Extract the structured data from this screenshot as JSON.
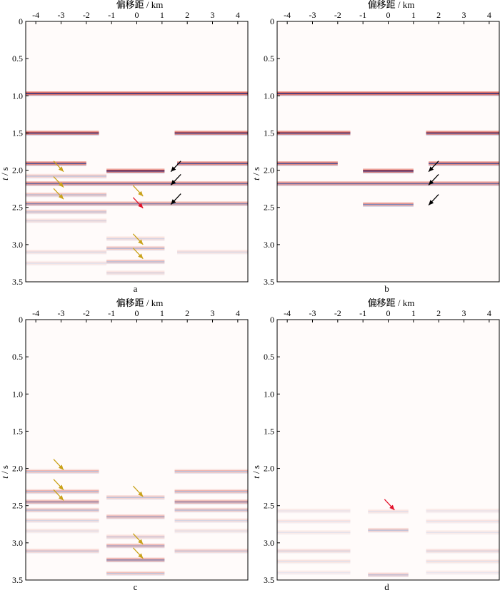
{
  "figure": {
    "x_axis_label": "偏移距 / km",
    "y_axis_label_italic": "t",
    "y_axis_label_rest": " / s",
    "x_ticks": [
      -4,
      -3,
      -2,
      -1,
      0,
      1,
      2,
      3,
      4
    ],
    "y_ticks": [
      "0",
      "0.5",
      "1.0",
      "1.5",
      "2.0",
      "2.5",
      "3.0",
      "3.5"
    ],
    "colors": {
      "background": "#fffbfa",
      "red": "#d43d2e",
      "blue": "#2f3a8c",
      "olive_arrow": "#c9a21a",
      "black_arrow": "#000000",
      "red_arrow": "#e3122b"
    }
  },
  "chart_data": [
    {
      "type": "heatmap",
      "panel_label": "a",
      "xlabel": "偏移距 / km",
      "ylabel": "t / s",
      "xlim": [
        -4.4,
        4.4
      ],
      "ylim": [
        0,
        3.5
      ],
      "events": [
        {
          "t": 0.97,
          "x_from": -4.4,
          "x_to": 4.4,
          "amp": 1.0
        },
        {
          "t": 1.5,
          "x_from": -4.4,
          "x_to": -1.5,
          "amp": 1.0
        },
        {
          "t": 1.5,
          "x_from": 1.5,
          "x_to": 4.4,
          "amp": 1.0
        },
        {
          "t": 1.91,
          "x_from": -4.4,
          "x_to": -2.0,
          "amp": 0.85
        },
        {
          "t": 1.91,
          "x_from": 1.6,
          "x_to": 4.4,
          "amp": 0.85
        },
        {
          "t": 2.01,
          "x_from": -1.2,
          "x_to": 1.1,
          "amp": 1.0
        },
        {
          "t": 2.08,
          "x_from": -4.4,
          "x_to": -1.2,
          "amp": 0.3
        },
        {
          "t": 2.18,
          "x_from": -4.4,
          "x_to": 4.4,
          "amp": 0.75
        },
        {
          "t": 2.33,
          "x_from": -4.4,
          "x_to": -1.2,
          "amp": 0.35
        },
        {
          "t": 2.45,
          "x_from": -4.4,
          "x_to": 4.4,
          "amp": 0.6
        },
        {
          "t": 2.56,
          "x_from": -4.4,
          "x_to": -1.2,
          "amp": 0.3
        },
        {
          "t": 2.68,
          "x_from": -4.4,
          "x_to": -1.2,
          "amp": 0.2
        },
        {
          "t": 2.92,
          "x_from": -1.2,
          "x_to": 1.1,
          "amp": 0.2
        },
        {
          "t": 3.05,
          "x_from": -1.2,
          "x_to": 1.1,
          "amp": 0.35
        },
        {
          "t": 3.1,
          "x_from": -4.4,
          "x_to": -1.2,
          "amp": 0.18
        },
        {
          "t": 3.1,
          "x_from": 1.6,
          "x_to": 4.4,
          "amp": 0.18
        },
        {
          "t": 3.23,
          "x_from": -1.2,
          "x_to": 1.1,
          "amp": 0.35
        },
        {
          "t": 3.25,
          "x_from": -4.4,
          "x_to": -1.2,
          "amp": 0.15
        },
        {
          "t": 3.38,
          "x_from": -1.2,
          "x_to": 1.1,
          "amp": 0.2
        }
      ],
      "arrows": [
        {
          "color": "olive",
          "x": -2.9,
          "t": 2.02,
          "dir": "down-right"
        },
        {
          "color": "olive",
          "x": -2.9,
          "t": 2.23,
          "dir": "down-right"
        },
        {
          "color": "olive",
          "x": -2.9,
          "t": 2.39,
          "dir": "down-right"
        },
        {
          "color": "olive",
          "x": 0.25,
          "t": 2.35,
          "dir": "down-right"
        },
        {
          "color": "olive",
          "x": 0.25,
          "t": 3.0,
          "dir": "down-right"
        },
        {
          "color": "olive",
          "x": 0.25,
          "t": 3.19,
          "dir": "down-right"
        },
        {
          "color": "red",
          "x": 0.25,
          "t": 2.51,
          "dir": "down-right"
        },
        {
          "color": "black",
          "x": 1.35,
          "t": 2.02,
          "dir": "down-left"
        },
        {
          "color": "black",
          "x": 1.35,
          "t": 2.2,
          "dir": "down-left"
        },
        {
          "color": "black",
          "x": 1.35,
          "t": 2.46,
          "dir": "down-left"
        }
      ]
    },
    {
      "type": "heatmap",
      "panel_label": "b",
      "xlabel": "偏移距 / km",
      "ylabel": "t / s",
      "xlim": [
        -4.4,
        4.4
      ],
      "ylim": [
        0,
        3.5
      ],
      "events": [
        {
          "t": 0.97,
          "x_from": -4.4,
          "x_to": 4.4,
          "amp": 1.0
        },
        {
          "t": 1.5,
          "x_from": -4.4,
          "x_to": -1.5,
          "amp": 1.0
        },
        {
          "t": 1.5,
          "x_from": 1.5,
          "x_to": 4.4,
          "amp": 1.0
        },
        {
          "t": 1.91,
          "x_from": -4.4,
          "x_to": -2.0,
          "amp": 0.85
        },
        {
          "t": 1.91,
          "x_from": 1.6,
          "x_to": 4.4,
          "amp": 0.85
        },
        {
          "t": 2.01,
          "x_from": -1.0,
          "x_to": 1.0,
          "amp": 1.0
        },
        {
          "t": 2.18,
          "x_from": -4.4,
          "x_to": 4.4,
          "amp": 0.75
        },
        {
          "t": 2.46,
          "x_from": -1.0,
          "x_to": 1.0,
          "amp": 0.6
        }
      ],
      "arrows": [
        {
          "color": "black",
          "x": 1.6,
          "t": 2.02,
          "dir": "down-left"
        },
        {
          "color": "black",
          "x": 1.6,
          "t": 2.2,
          "dir": "down-left"
        },
        {
          "color": "black",
          "x": 1.6,
          "t": 2.47,
          "dir": "down-left"
        }
      ]
    },
    {
      "type": "heatmap",
      "panel_label": "c",
      "xlabel": "偏移距 / km",
      "ylabel": "t / s",
      "xlim": [
        -4.4,
        4.4
      ],
      "ylim": [
        0,
        3.5
      ],
      "events": [
        {
          "t": 2.04,
          "x_from": -4.4,
          "x_to": -1.5,
          "amp": 0.35
        },
        {
          "t": 2.04,
          "x_from": 1.5,
          "x_to": 4.4,
          "amp": 0.35
        },
        {
          "t": 2.31,
          "x_from": -4.4,
          "x_to": -1.5,
          "amp": 0.4
        },
        {
          "t": 2.31,
          "x_from": 1.5,
          "x_to": 4.4,
          "amp": 0.4
        },
        {
          "t": 2.39,
          "x_from": -1.2,
          "x_to": 1.1,
          "amp": 0.3
        },
        {
          "t": 2.45,
          "x_from": -4.4,
          "x_to": -1.5,
          "amp": 0.55
        },
        {
          "t": 2.45,
          "x_from": 1.5,
          "x_to": 4.4,
          "amp": 0.55
        },
        {
          "t": 2.56,
          "x_from": -4.4,
          "x_to": -1.5,
          "amp": 0.35
        },
        {
          "t": 2.56,
          "x_from": 1.5,
          "x_to": 4.4,
          "amp": 0.35
        },
        {
          "t": 2.65,
          "x_from": -1.2,
          "x_to": 1.1,
          "amp": 0.45
        },
        {
          "t": 2.7,
          "x_from": -4.4,
          "x_to": -1.5,
          "amp": 0.2
        },
        {
          "t": 2.7,
          "x_from": 1.5,
          "x_to": 4.4,
          "amp": 0.2
        },
        {
          "t": 2.84,
          "x_from": -4.4,
          "x_to": -1.5,
          "amp": 0.15
        },
        {
          "t": 2.84,
          "x_from": 1.5,
          "x_to": 4.4,
          "amp": 0.15
        },
        {
          "t": 2.92,
          "x_from": -1.2,
          "x_to": 1.1,
          "amp": 0.25
        },
        {
          "t": 3.04,
          "x_from": -1.2,
          "x_to": 1.1,
          "amp": 0.45
        },
        {
          "t": 3.11,
          "x_from": -4.4,
          "x_to": -1.5,
          "amp": 0.3
        },
        {
          "t": 3.11,
          "x_from": 1.5,
          "x_to": 4.4,
          "amp": 0.3
        },
        {
          "t": 3.23,
          "x_from": -1.2,
          "x_to": 1.1,
          "amp": 0.6
        },
        {
          "t": 3.41,
          "x_from": -1.2,
          "x_to": 1.1,
          "amp": 0.3
        }
      ],
      "arrows": [
        {
          "color": "olive",
          "x": -2.9,
          "t": 2.02,
          "dir": "down-right"
        },
        {
          "color": "olive",
          "x": -2.9,
          "t": 2.29,
          "dir": "down-right"
        },
        {
          "color": "olive",
          "x": -2.9,
          "t": 2.43,
          "dir": "down-right"
        },
        {
          "color": "olive",
          "x": 0.25,
          "t": 2.38,
          "dir": "down-right"
        },
        {
          "color": "olive",
          "x": 0.25,
          "t": 3.02,
          "dir": "down-right"
        },
        {
          "color": "olive",
          "x": 0.25,
          "t": 3.21,
          "dir": "down-right"
        }
      ]
    },
    {
      "type": "heatmap",
      "panel_label": "d",
      "xlabel": "偏移距 / km",
      "ylabel": "t / s",
      "xlim": [
        -4.4,
        4.4
      ],
      "ylim": [
        0,
        3.5
      ],
      "events": [
        {
          "t": 2.57,
          "x_from": -4.4,
          "x_to": -1.5,
          "amp": 0.12
        },
        {
          "t": 2.57,
          "x_from": 1.5,
          "x_to": 4.4,
          "amp": 0.12
        },
        {
          "t": 2.58,
          "x_from": -0.8,
          "x_to": 0.8,
          "amp": 0.15
        },
        {
          "t": 2.71,
          "x_from": -4.4,
          "x_to": -1.5,
          "amp": 0.12
        },
        {
          "t": 2.71,
          "x_from": 1.5,
          "x_to": 4.4,
          "amp": 0.12
        },
        {
          "t": 2.83,
          "x_from": -0.8,
          "x_to": 0.8,
          "amp": 0.3
        },
        {
          "t": 2.86,
          "x_from": -4.4,
          "x_to": -1.5,
          "amp": 0.12
        },
        {
          "t": 2.86,
          "x_from": 1.5,
          "x_to": 4.4,
          "amp": 0.12
        },
        {
          "t": 3.11,
          "x_from": -4.4,
          "x_to": -1.5,
          "amp": 0.2
        },
        {
          "t": 3.11,
          "x_from": 1.5,
          "x_to": 4.4,
          "amp": 0.2
        },
        {
          "t": 3.25,
          "x_from": -4.4,
          "x_to": -1.5,
          "amp": 0.15
        },
        {
          "t": 3.25,
          "x_from": 1.5,
          "x_to": 4.4,
          "amp": 0.15
        },
        {
          "t": 3.4,
          "x_from": -4.4,
          "x_to": -1.5,
          "amp": 0.1
        },
        {
          "t": 3.4,
          "x_from": 1.5,
          "x_to": 4.4,
          "amp": 0.1
        },
        {
          "t": 3.43,
          "x_from": -0.8,
          "x_to": 0.8,
          "amp": 0.3
        }
      ],
      "arrows": [
        {
          "color": "red",
          "x": 0.25,
          "t": 2.56,
          "dir": "down-right"
        }
      ]
    }
  ]
}
